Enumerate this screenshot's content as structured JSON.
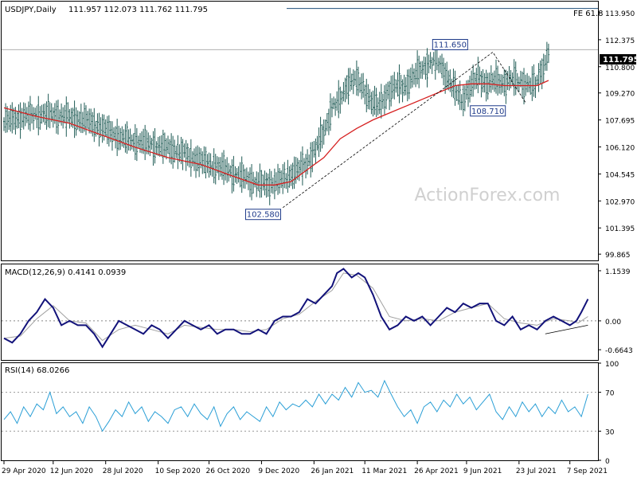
{
  "chart_data": [
    {
      "type": "candlestick",
      "title": "USDJPY,Daily",
      "ohlc_readout": "111.957 112.073 111.762 111.795",
      "ylim": [
        99.5,
        114.6
      ],
      "y_ticks": [
        "113.950",
        "112.375",
        "110.800",
        "109.270",
        "107.695",
        "106.120",
        "104.545",
        "102.970",
        "101.395",
        "99.865"
      ],
      "y_tick_values": [
        113.95,
        112.375,
        110.8,
        109.27,
        107.695,
        106.12,
        104.545,
        102.97,
        101.395,
        99.865
      ],
      "current_price": 111.795,
      "current_price_label": "111.795",
      "watermark": "ActionForex.com",
      "fe_level": 114.2,
      "fe_label": "FE 61.8",
      "annotations": [
        {
          "label": "102.580",
          "value": 102.58
        },
        {
          "label": "111.650",
          "value": 111.65
        },
        {
          "label": "108.710",
          "value": 108.71
        }
      ],
      "close_path": [
        [
          0,
          107.6
        ],
        [
          12,
          107.9
        ],
        [
          22,
          108.0
        ],
        [
          32,
          108.0
        ],
        [
          42,
          107.8
        ],
        [
          52,
          107.6
        ],
        [
          62,
          107.1
        ],
        [
          72,
          106.6
        ],
        [
          82,
          106.4
        ],
        [
          92,
          106.2
        ],
        [
          102,
          106.0
        ],
        [
          112,
          105.6
        ],
        [
          122,
          105.2
        ],
        [
          132,
          104.9
        ],
        [
          142,
          104.5
        ],
        [
          152,
          104.1
        ],
        [
          160,
          103.9
        ],
        [
          170,
          104.2
        ],
        [
          178,
          104.7
        ],
        [
          185,
          105.2
        ],
        [
          190,
          106.0
        ],
        [
          196,
          107.2
        ],
        [
          200,
          108.5
        ],
        [
          205,
          108.8
        ],
        [
          210,
          109.9
        ],
        [
          214,
          110.1
        ],
        [
          219,
          109.5
        ],
        [
          224,
          108.8
        ],
        [
          229,
          108.5
        ],
        [
          234,
          109.3
        ],
        [
          239,
          109.7
        ],
        [
          244,
          109.6
        ],
        [
          249,
          110.2
        ],
        [
          254,
          110.6
        ],
        [
          259,
          111.0
        ],
        [
          264,
          111.2
        ],
        [
          269,
          110.4
        ],
        [
          274,
          109.6
        ],
        [
          279,
          108.8
        ],
        [
          284,
          109.6
        ],
        [
          289,
          110.2
        ],
        [
          294,
          109.8
        ],
        [
          299,
          110.0
        ],
        [
          304,
          109.8
        ],
        [
          309,
          110.1
        ],
        [
          314,
          109.9
        ],
        [
          319,
          109.8
        ],
        [
          324,
          109.7
        ],
        [
          327,
          110.4
        ],
        [
          330,
          111.0
        ],
        [
          332,
          111.8
        ]
      ],
      "ma_path": [
        [
          0,
          108.4
        ],
        [
          20,
          107.9
        ],
        [
          40,
          107.5
        ],
        [
          60,
          106.8
        ],
        [
          80,
          106.1
        ],
        [
          100,
          105.5
        ],
        [
          120,
          105.1
        ],
        [
          140,
          104.4
        ],
        [
          155,
          103.9
        ],
        [
          165,
          103.9
        ],
        [
          175,
          104.1
        ],
        [
          185,
          104.8
        ],
        [
          195,
          105.5
        ],
        [
          205,
          106.6
        ],
        [
          215,
          107.2
        ],
        [
          225,
          107.7
        ],
        [
          235,
          108.1
        ],
        [
          245,
          108.5
        ],
        [
          255,
          108.9
        ],
        [
          265,
          109.3
        ],
        [
          275,
          109.7
        ],
        [
          285,
          109.8
        ],
        [
          295,
          109.8
        ],
        [
          305,
          109.7
        ],
        [
          315,
          109.7
        ],
        [
          325,
          109.7
        ],
        [
          332,
          110.0
        ]
      ],
      "x_labels": [
        "29 Apr 2020",
        "12 Jun 2020",
        "28 Jul 2020",
        "10 Sep 2020",
        "26 Oct 2020",
        "9 Dec 2020",
        "26 Jan 2021",
        "11 Mar 2021",
        "26 Apr 2021",
        "9 Jun 2021",
        "23 Jul 2021",
        "7 Sep 2021"
      ],
      "x_label_index": [
        0,
        30,
        62,
        94,
        125,
        157,
        189,
        220,
        252,
        282,
        314,
        345
      ]
    },
    {
      "type": "line",
      "title": "MACD(12,26,9) 0.4141 0.0939",
      "ylim": [
        -0.9,
        1.3
      ],
      "y_ticks": [
        "1.1539",
        "0.00",
        "-0.6643"
      ],
      "y_tick_values": [
        1.1539,
        0.0,
        -0.6643
      ],
      "zero_label": "0.00",
      "macd": [
        [
          0,
          -0.4
        ],
        [
          5,
          -0.5
        ],
        [
          10,
          -0.3
        ],
        [
          15,
          0.0
        ],
        [
          20,
          0.2
        ],
        [
          25,
          0.5
        ],
        [
          30,
          0.3
        ],
        [
          35,
          -0.1
        ],
        [
          40,
          0.0
        ],
        [
          45,
          -0.1
        ],
        [
          50,
          -0.1
        ],
        [
          55,
          -0.3
        ],
        [
          60,
          -0.6
        ],
        [
          65,
          -0.3
        ],
        [
          70,
          0.0
        ],
        [
          75,
          -0.1
        ],
        [
          80,
          -0.2
        ],
        [
          85,
          -0.3
        ],
        [
          90,
          -0.1
        ],
        [
          95,
          -0.2
        ],
        [
          100,
          -0.4
        ],
        [
          105,
          -0.2
        ],
        [
          110,
          0.0
        ],
        [
          115,
          -0.1
        ],
        [
          120,
          -0.2
        ],
        [
          125,
          -0.1
        ],
        [
          130,
          -0.3
        ],
        [
          135,
          -0.2
        ],
        [
          140,
          -0.2
        ],
        [
          145,
          -0.3
        ],
        [
          150,
          -0.3
        ],
        [
          155,
          -0.2
        ],
        [
          160,
          -0.3
        ],
        [
          165,
          0.0
        ],
        [
          170,
          0.1
        ],
        [
          175,
          0.1
        ],
        [
          180,
          0.2
        ],
        [
          185,
          0.5
        ],
        [
          190,
          0.4
        ],
        [
          195,
          0.6
        ],
        [
          200,
          0.8
        ],
        [
          203,
          1.1
        ],
        [
          207,
          1.2
        ],
        [
          212,
          1.0
        ],
        [
          216,
          1.1
        ],
        [
          220,
          1.0
        ],
        [
          225,
          0.6
        ],
        [
          230,
          0.1
        ],
        [
          235,
          -0.2
        ],
        [
          240,
          -0.1
        ],
        [
          245,
          0.1
        ],
        [
          250,
          0.0
        ],
        [
          255,
          0.1
        ],
        [
          260,
          -0.1
        ],
        [
          265,
          0.1
        ],
        [
          270,
          0.3
        ],
        [
          275,
          0.2
        ],
        [
          280,
          0.4
        ],
        [
          285,
          0.3
        ],
        [
          290,
          0.4
        ],
        [
          295,
          0.4
        ],
        [
          300,
          0.0
        ],
        [
          305,
          -0.1
        ],
        [
          310,
          0.1
        ],
        [
          315,
          -0.2
        ],
        [
          320,
          -0.1
        ],
        [
          325,
          -0.2
        ],
        [
          330,
          0.0
        ],
        [
          335,
          0.1
        ],
        [
          340,
          0.0
        ],
        [
          345,
          -0.1
        ],
        [
          349,
          0.0
        ],
        [
          352,
          0.2
        ],
        [
          356,
          0.5
        ]
      ],
      "signal": [
        [
          0,
          -0.4
        ],
        [
          10,
          -0.35
        ],
        [
          20,
          0.05
        ],
        [
          30,
          0.35
        ],
        [
          40,
          0.0
        ],
        [
          50,
          -0.05
        ],
        [
          60,
          -0.45
        ],
        [
          70,
          -0.2
        ],
        [
          80,
          -0.1
        ],
        [
          90,
          -0.2
        ],
        [
          100,
          -0.3
        ],
        [
          110,
          -0.1
        ],
        [
          120,
          -0.15
        ],
        [
          130,
          -0.2
        ],
        [
          140,
          -0.2
        ],
        [
          150,
          -0.25
        ],
        [
          160,
          -0.2
        ],
        [
          170,
          0.05
        ],
        [
          180,
          0.15
        ],
        [
          190,
          0.45
        ],
        [
          200,
          0.7
        ],
        [
          207,
          1.1
        ],
        [
          215,
          1.05
        ],
        [
          225,
          0.75
        ],
        [
          235,
          0.1
        ],
        [
          245,
          0.0
        ],
        [
          255,
          0.05
        ],
        [
          265,
          0.0
        ],
        [
          275,
          0.2
        ],
        [
          285,
          0.3
        ],
        [
          295,
          0.4
        ],
        [
          305,
          0.05
        ],
        [
          315,
          -0.05
        ],
        [
          325,
          -0.1
        ],
        [
          335,
          0.05
        ],
        [
          345,
          0.0
        ],
        [
          350,
          -0.05
        ],
        [
          356,
          0.1
        ]
      ],
      "divergence_line": [
        [
          330,
          -0.3
        ],
        [
          356,
          -0.1
        ]
      ]
    },
    {
      "type": "line",
      "title": "RSI(14) 68.0266",
      "ylim": [
        0,
        100
      ],
      "y_ticks": [
        "100",
        "70",
        "30",
        "0"
      ],
      "y_tick_values": [
        100,
        70,
        30,
        0
      ],
      "rsi": [
        [
          0,
          42
        ],
        [
          4,
          50
        ],
        [
          8,
          38
        ],
        [
          12,
          55
        ],
        [
          16,
          45
        ],
        [
          20,
          58
        ],
        [
          24,
          52
        ],
        [
          28,
          70
        ],
        [
          32,
          48
        ],
        [
          36,
          55
        ],
        [
          40,
          45
        ],
        [
          44,
          50
        ],
        [
          48,
          38
        ],
        [
          52,
          55
        ],
        [
          56,
          45
        ],
        [
          60,
          30
        ],
        [
          64,
          40
        ],
        [
          68,
          52
        ],
        [
          72,
          45
        ],
        [
          76,
          60
        ],
        [
          80,
          48
        ],
        [
          84,
          55
        ],
        [
          88,
          40
        ],
        [
          92,
          50
        ],
        [
          96,
          45
        ],
        [
          100,
          38
        ],
        [
          104,
          52
        ],
        [
          108,
          55
        ],
        [
          112,
          45
        ],
        [
          116,
          58
        ],
        [
          120,
          48
        ],
        [
          124,
          42
        ],
        [
          128,
          55
        ],
        [
          132,
          35
        ],
        [
          136,
          48
        ],
        [
          140,
          55
        ],
        [
          144,
          42
        ],
        [
          148,
          50
        ],
        [
          152,
          45
        ],
        [
          156,
          40
        ],
        [
          160,
          55
        ],
        [
          164,
          45
        ],
        [
          168,
          60
        ],
        [
          172,
          52
        ],
        [
          176,
          58
        ],
        [
          180,
          55
        ],
        [
          184,
          62
        ],
        [
          188,
          55
        ],
        [
          192,
          68
        ],
        [
          196,
          58
        ],
        [
          200,
          68
        ],
        [
          204,
          62
        ],
        [
          208,
          75
        ],
        [
          212,
          65
        ],
        [
          216,
          80
        ],
        [
          220,
          70
        ],
        [
          224,
          72
        ],
        [
          228,
          65
        ],
        [
          232,
          82
        ],
        [
          236,
          68
        ],
        [
          240,
          55
        ],
        [
          244,
          45
        ],
        [
          248,
          52
        ],
        [
          252,
          38
        ],
        [
          256,
          55
        ],
        [
          260,
          60
        ],
        [
          264,
          50
        ],
        [
          268,
          62
        ],
        [
          272,
          55
        ],
        [
          276,
          68
        ],
        [
          280,
          58
        ],
        [
          284,
          65
        ],
        [
          288,
          52
        ],
        [
          292,
          60
        ],
        [
          296,
          68
        ],
        [
          300,
          50
        ],
        [
          304,
          42
        ],
        [
          308,
          55
        ],
        [
          312,
          45
        ],
        [
          316,
          60
        ],
        [
          320,
          50
        ],
        [
          324,
          58
        ],
        [
          328,
          45
        ],
        [
          332,
          55
        ],
        [
          336,
          48
        ],
        [
          340,
          62
        ],
        [
          344,
          50
        ],
        [
          348,
          55
        ],
        [
          352,
          45
        ],
        [
          356,
          68
        ]
      ]
    }
  ]
}
